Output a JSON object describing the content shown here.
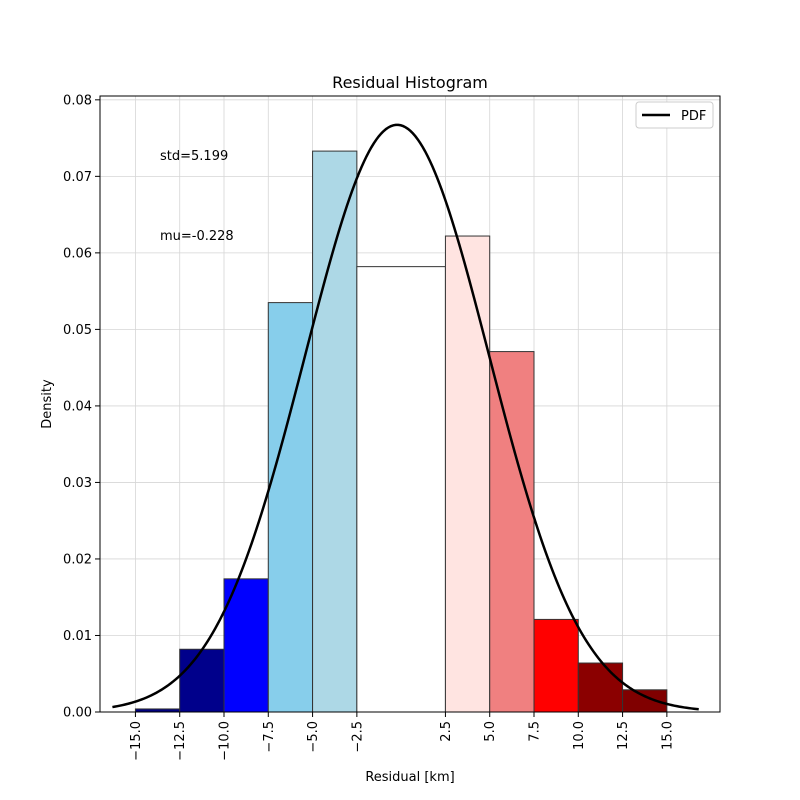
{
  "chart_data": {
    "type": "bar",
    "title": "Residual Histogram",
    "xlabel": "Residual [km]",
    "ylabel": "Density",
    "xlim": [
      -17.0,
      18.0
    ],
    "ylim": [
      0.0,
      0.0805
    ],
    "grid": true,
    "legend": {
      "position": "top-right",
      "entries": [
        {
          "label": "PDF",
          "color": "#000000"
        }
      ]
    },
    "annotations": [
      {
        "text": "std=5.199"
      },
      {
        "text": "mu=-0.228"
      }
    ],
    "x_ticks": [
      {
        "value": -15.0,
        "label": "−15.0"
      },
      {
        "value": -12.5,
        "label": "−12.5"
      },
      {
        "value": -10.0,
        "label": "−10.0"
      },
      {
        "value": -7.5,
        "label": "−7.5"
      },
      {
        "value": -5.0,
        "label": "−5.0"
      },
      {
        "value": -2.5,
        "label": "−2.5"
      },
      {
        "value": 2.5,
        "label": "2.5"
      },
      {
        "value": 5.0,
        "label": "5.0"
      },
      {
        "value": 7.5,
        "label": "7.5"
      },
      {
        "value": 10.0,
        "label": "10.0"
      },
      {
        "value": 12.5,
        "label": "12.5"
      },
      {
        "value": 15.0,
        "label": "15.0"
      }
    ],
    "y_ticks": [
      {
        "value": 0.0,
        "label": "0.00"
      },
      {
        "value": 0.01,
        "label": "0.01"
      },
      {
        "value": 0.02,
        "label": "0.02"
      },
      {
        "value": 0.03,
        "label": "0.03"
      },
      {
        "value": 0.04,
        "label": "0.04"
      },
      {
        "value": 0.05,
        "label": "0.05"
      },
      {
        "value": 0.06,
        "label": "0.06"
      },
      {
        "value": 0.07,
        "label": "0.07"
      },
      {
        "value": 0.08,
        "label": "0.08"
      }
    ],
    "bins": [
      {
        "x0": -15.0,
        "x1": -12.5,
        "density": 0.0004,
        "color": "#000080"
      },
      {
        "x0": -12.5,
        "x1": -10.0,
        "density": 0.0082,
        "color": "#00008B"
      },
      {
        "x0": -10.0,
        "x1": -7.5,
        "density": 0.0174,
        "color": "#0000FF"
      },
      {
        "x0": -7.5,
        "x1": -5.0,
        "density": 0.0535,
        "color": "#87CEEB"
      },
      {
        "x0": -5.0,
        "x1": -2.5,
        "density": 0.0733,
        "color": "#ADD8E6"
      },
      {
        "x0": -2.5,
        "x1": 2.5,
        "density": 0.0582,
        "color": "#FFFFFF"
      },
      {
        "x0": 2.5,
        "x1": 5.0,
        "density": 0.0622,
        "color": "#FFE4E1"
      },
      {
        "x0": 5.0,
        "x1": 7.5,
        "density": 0.0471,
        "color": "#F08080"
      },
      {
        "x0": 7.5,
        "x1": 10.0,
        "density": 0.0121,
        "color": "#FF0000"
      },
      {
        "x0": 10.0,
        "x1": 12.5,
        "density": 0.0064,
        "color": "#8B0000"
      },
      {
        "x0": 12.5,
        "x1": 15.0,
        "density": 0.0029,
        "color": "#800000"
      }
    ],
    "series": [
      {
        "name": "PDF",
        "type": "line",
        "color": "#000000",
        "distribution": "normal",
        "mu": -0.228,
        "std": 5.199,
        "x_range": [
          -16.3,
          16.8
        ]
      }
    ]
  }
}
